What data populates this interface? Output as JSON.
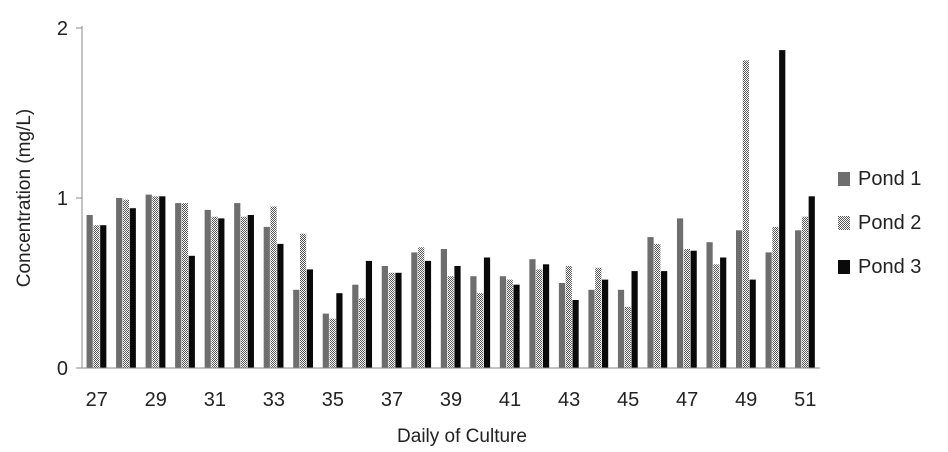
{
  "chart_data": {
    "type": "bar",
    "title": "",
    "xlabel": "Daily of Culture",
    "ylabel": "Concentration  (mg/L)",
    "ylim": [
      0,
      2
    ],
    "yticks": [
      0,
      1,
      2
    ],
    "categories": [
      "27",
      "28",
      "29",
      "30",
      "31",
      "32",
      "33",
      "34",
      "35",
      "36",
      "37",
      "38",
      "39",
      "40",
      "41",
      "42",
      "43",
      "44",
      "45",
      "46",
      "47",
      "48",
      "49",
      "50",
      "51"
    ],
    "category_labels": [
      "27",
      "",
      "29",
      "",
      "31",
      "",
      "33",
      "",
      "35",
      "",
      "37",
      "",
      "39",
      "",
      "41",
      "",
      "43",
      "",
      "45",
      "",
      "47",
      "",
      "49",
      "",
      "51"
    ],
    "series": [
      {
        "name": "Pond 1",
        "values": [
          0.9,
          1.0,
          1.02,
          0.97,
          0.93,
          0.97,
          0.83,
          0.46,
          0.32,
          0.49,
          0.6,
          0.68,
          0.7,
          0.54,
          0.54,
          0.64,
          0.5,
          0.46,
          0.46,
          0.77,
          0.88,
          0.74,
          0.81,
          0.68,
          0.81
        ]
      },
      {
        "name": "Pond 2",
        "values": [
          0.84,
          0.99,
          1.01,
          0.97,
          0.89,
          0.89,
          0.95,
          0.79,
          0.29,
          0.41,
          0.56,
          0.71,
          0.54,
          0.44,
          0.52,
          0.58,
          0.6,
          0.59,
          0.36,
          0.73,
          0.7,
          0.61,
          1.81,
          0.83,
          0.89
        ]
      },
      {
        "name": "Pond 3",
        "values": [
          0.84,
          0.94,
          1.01,
          0.66,
          0.88,
          0.9,
          0.73,
          0.58,
          0.44,
          0.63,
          0.56,
          0.63,
          0.6,
          0.65,
          0.49,
          0.61,
          0.4,
          0.52,
          0.57,
          0.57,
          0.69,
          0.65,
          0.52,
          1.87,
          1.01
        ]
      }
    ],
    "grid": false,
    "legend": "right",
    "colors": [
      "#6e6e6e",
      "#a8a8a8",
      "#0a0a0a"
    ]
  }
}
